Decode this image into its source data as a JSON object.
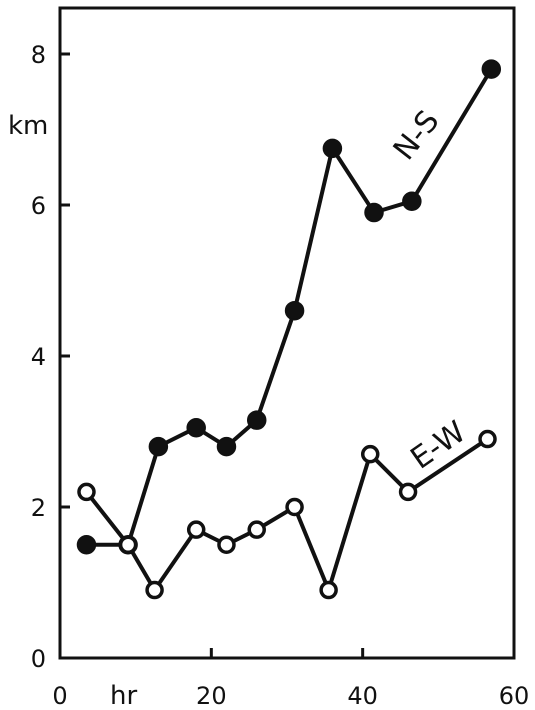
{
  "chart_data": {
    "type": "line",
    "title": "",
    "xlabel": "hr",
    "ylabel": "km",
    "xlim": [
      0,
      60
    ],
    "ylim": [
      0,
      8.5
    ],
    "x_ticks": [
      0,
      20,
      40,
      60
    ],
    "y_ticks": [
      0,
      2,
      4,
      6,
      8
    ],
    "grid": false,
    "series": [
      {
        "name": "N-S",
        "marker": "filled-circle",
        "color": "#111111",
        "points": [
          {
            "x": 3.5,
            "y": 1.5
          },
          {
            "x": 9,
            "y": 1.5
          },
          {
            "x": 13,
            "y": 2.8
          },
          {
            "x": 18,
            "y": 3.05
          },
          {
            "x": 22,
            "y": 2.8
          },
          {
            "x": 26,
            "y": 3.15
          },
          {
            "x": 31,
            "y": 4.6
          },
          {
            "x": 36,
            "y": 6.75
          },
          {
            "x": 41.5,
            "y": 5.9
          },
          {
            "x": 46.5,
            "y": 6.05
          },
          {
            "x": 57,
            "y": 7.8
          }
        ]
      },
      {
        "name": "E-W",
        "marker": "open-circle",
        "color": "#111111",
        "points": [
          {
            "x": 3.5,
            "y": 2.2
          },
          {
            "x": 9,
            "y": 1.5
          },
          {
            "x": 12.5,
            "y": 0.9
          },
          {
            "x": 18,
            "y": 1.7
          },
          {
            "x": 22,
            "y": 1.5
          },
          {
            "x": 26,
            "y": 1.7
          },
          {
            "x": 31,
            "y": 2.0
          },
          {
            "x": 35.5,
            "y": 0.9
          },
          {
            "x": 41,
            "y": 2.7
          },
          {
            "x": 46,
            "y": 2.2
          },
          {
            "x": 56.5,
            "y": 2.9
          }
        ]
      }
    ]
  }
}
